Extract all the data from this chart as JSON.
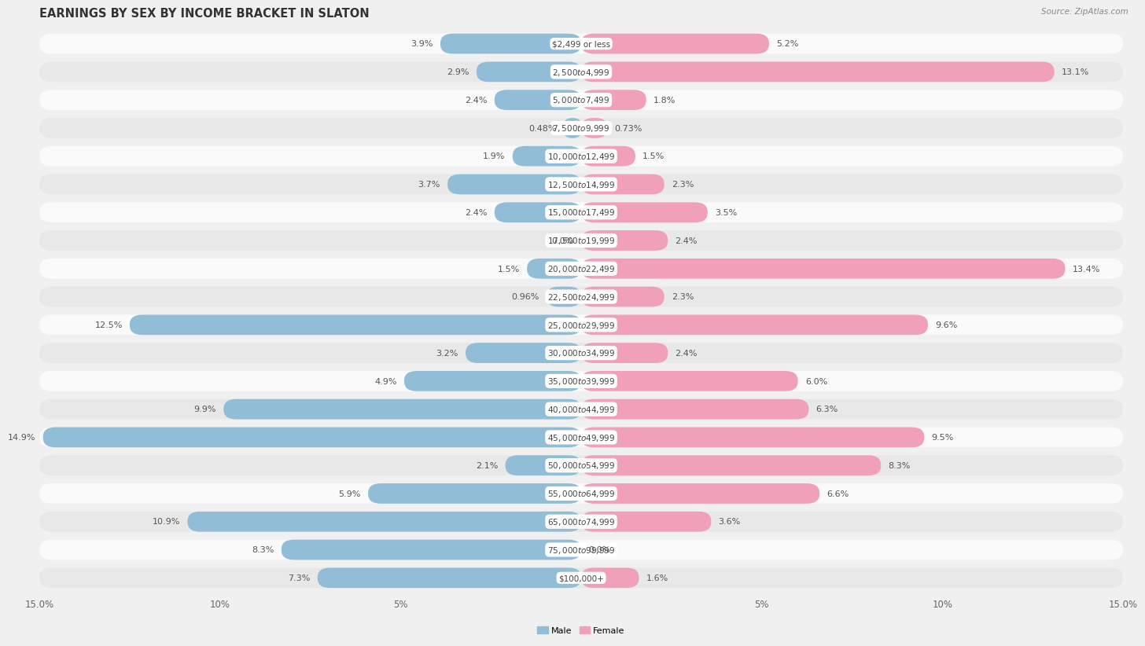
{
  "title": "EARNINGS BY SEX BY INCOME BRACKET IN SLATON",
  "source": "Source: ZipAtlas.com",
  "categories": [
    "$2,499 or less",
    "$2,500 to $4,999",
    "$5,000 to $7,499",
    "$7,500 to $9,999",
    "$10,000 to $12,499",
    "$12,500 to $14,999",
    "$15,000 to $17,499",
    "$17,500 to $19,999",
    "$20,000 to $22,499",
    "$22,500 to $24,999",
    "$25,000 to $29,999",
    "$30,000 to $34,999",
    "$35,000 to $39,999",
    "$40,000 to $44,999",
    "$45,000 to $49,999",
    "$50,000 to $54,999",
    "$55,000 to $64,999",
    "$65,000 to $74,999",
    "$75,000 to $99,999",
    "$100,000+"
  ],
  "male_values": [
    3.9,
    2.9,
    2.4,
    0.48,
    1.9,
    3.7,
    2.4,
    0.0,
    1.5,
    0.96,
    12.5,
    3.2,
    4.9,
    9.9,
    14.9,
    2.1,
    5.9,
    10.9,
    8.3,
    7.3
  ],
  "female_values": [
    5.2,
    13.1,
    1.8,
    0.73,
    1.5,
    2.3,
    3.5,
    2.4,
    13.4,
    2.3,
    9.6,
    2.4,
    6.0,
    6.3,
    9.5,
    8.3,
    6.6,
    3.6,
    0.0,
    1.6
  ],
  "male_color": "#92bdd6",
  "female_color": "#f0a0b8",
  "axis_max": 15.0,
  "background_color": "#f0f0f0",
  "row_bg_light": "#fafafa",
  "row_bg_dark": "#e8e8e8",
  "title_fontsize": 10.5,
  "label_fontsize": 8.0,
  "tick_fontsize": 8.5,
  "value_fontsize": 8.0,
  "cat_fontsize": 7.5
}
